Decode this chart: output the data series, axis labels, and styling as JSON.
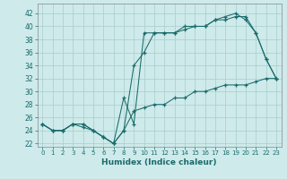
{
  "xlabel": "Humidex (Indice chaleur)",
  "bg_color": "#ceeaea",
  "line_color": "#1a6b6b",
  "grid_color": "#a8cccc",
  "x_ticks": [
    0,
    1,
    2,
    3,
    4,
    5,
    6,
    7,
    8,
    9,
    10,
    11,
    12,
    13,
    14,
    15,
    16,
    17,
    18,
    19,
    20,
    21,
    22,
    23
  ],
  "y_ticks": [
    22,
    24,
    26,
    28,
    30,
    32,
    34,
    36,
    38,
    40,
    42
  ],
  "xlim": [
    -0.5,
    23.5
  ],
  "ylim": [
    21.5,
    43.5
  ],
  "line1_x": [
    0,
    1,
    2,
    3,
    4,
    5,
    6,
    7,
    8,
    9,
    10,
    11,
    12,
    13,
    14,
    15,
    16,
    17,
    18,
    19,
    20,
    21,
    22,
    23
  ],
  "line1_y": [
    25,
    24,
    24,
    25,
    25,
    24,
    23,
    22,
    24,
    34,
    36,
    39,
    39,
    39,
    40,
    40,
    40,
    41,
    41.5,
    42,
    41,
    39,
    35,
    32
  ],
  "line2_x": [
    0,
    1,
    2,
    3,
    4,
    5,
    6,
    7,
    8,
    9,
    10,
    11,
    12,
    13,
    14,
    15,
    16,
    17,
    18,
    19,
    20,
    21,
    22,
    23
  ],
  "line2_y": [
    25,
    24,
    24,
    25,
    25,
    24,
    23,
    22,
    29,
    25,
    39,
    39,
    39,
    39,
    39.5,
    40,
    40,
    41,
    41,
    41.5,
    41.5,
    39,
    35,
    32
  ],
  "line3_x": [
    0,
    1,
    2,
    3,
    4,
    5,
    6,
    7,
    8,
    9,
    10,
    11,
    12,
    13,
    14,
    15,
    16,
    17,
    18,
    19,
    20,
    21,
    22,
    23
  ],
  "line3_y": [
    25,
    24,
    24,
    25,
    24.5,
    24,
    23,
    22,
    24,
    27,
    27.5,
    28,
    28,
    29,
    29,
    30,
    30,
    30.5,
    31,
    31,
    31,
    31.5,
    32,
    32
  ]
}
